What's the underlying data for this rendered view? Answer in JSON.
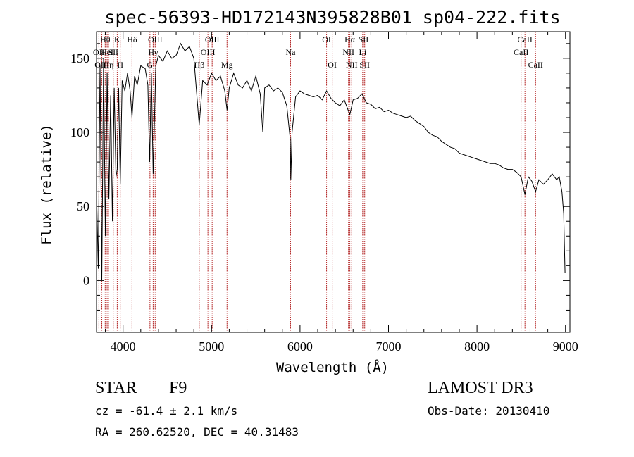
{
  "chart_data": {
    "type": "line",
    "title": "spec-56393-HD172143N395828B01_sp04-222.fits",
    "xlabel": "Wavelength (Å)",
    "ylabel": "Flux (relative)",
    "xlim": [
      3700,
      9050
    ],
    "ylim": [
      -35,
      168
    ],
    "x_ticks": [
      4000,
      5000,
      6000,
      7000,
      8000,
      9000
    ],
    "y_ticks": [
      0,
      50,
      100,
      150
    ],
    "series": [
      {
        "name": "spectrum",
        "points": [
          [
            3700,
            60
          ],
          [
            3720,
            8
          ],
          [
            3740,
            145
          ],
          [
            3760,
            0
          ],
          [
            3780,
            150
          ],
          [
            3800,
            30
          ],
          [
            3820,
            140
          ],
          [
            3840,
            55
          ],
          [
            3860,
            125
          ],
          [
            3880,
            40
          ],
          [
            3900,
            130
          ],
          [
            3920,
            70
          ],
          [
            3934,
            75
          ],
          [
            3950,
            130
          ],
          [
            3968,
            65
          ],
          [
            3990,
            135
          ],
          [
            4020,
            128
          ],
          [
            4050,
            140
          ],
          [
            4080,
            128
          ],
          [
            4101,
            110
          ],
          [
            4130,
            138
          ],
          [
            4160,
            132
          ],
          [
            4200,
            145
          ],
          [
            4250,
            143
          ],
          [
            4280,
            132
          ],
          [
            4300,
            80
          ],
          [
            4320,
            140
          ],
          [
            4340,
            72
          ],
          [
            4370,
            145
          ],
          [
            4400,
            152
          ],
          [
            4450,
            148
          ],
          [
            4500,
            155
          ],
          [
            4550,
            150
          ],
          [
            4600,
            152
          ],
          [
            4650,
            160
          ],
          [
            4700,
            155
          ],
          [
            4750,
            158
          ],
          [
            4800,
            150
          ],
          [
            4861,
            105
          ],
          [
            4900,
            135
          ],
          [
            4950,
            132
          ],
          [
            5000,
            140
          ],
          [
            5050,
            135
          ],
          [
            5100,
            138
          ],
          [
            5150,
            128
          ],
          [
            5175,
            115
          ],
          [
            5200,
            130
          ],
          [
            5250,
            140
          ],
          [
            5300,
            132
          ],
          [
            5350,
            130
          ],
          [
            5400,
            135
          ],
          [
            5450,
            128
          ],
          [
            5500,
            138
          ],
          [
            5550,
            126
          ],
          [
            5580,
            100
          ],
          [
            5600,
            130
          ],
          [
            5650,
            132
          ],
          [
            5700,
            128
          ],
          [
            5750,
            130
          ],
          [
            5800,
            127
          ],
          [
            5850,
            118
          ],
          [
            5890,
            95
          ],
          [
            5896,
            68
          ],
          [
            5910,
            100
          ],
          [
            5950,
            124
          ],
          [
            6000,
            128
          ],
          [
            6050,
            126
          ],
          [
            6100,
            125
          ],
          [
            6150,
            124
          ],
          [
            6200,
            125
          ],
          [
            6250,
            122
          ],
          [
            6300,
            128
          ],
          [
            6350,
            123
          ],
          [
            6400,
            120
          ],
          [
            6450,
            118
          ],
          [
            6500,
            122
          ],
          [
            6563,
            112
          ],
          [
            6600,
            122
          ],
          [
            6650,
            123
          ],
          [
            6700,
            126
          ],
          [
            6750,
            120
          ],
          [
            6800,
            119
          ],
          [
            6850,
            116
          ],
          [
            6900,
            117
          ],
          [
            6950,
            114
          ],
          [
            7000,
            115
          ],
          [
            7050,
            113
          ],
          [
            7100,
            112
          ],
          [
            7150,
            111
          ],
          [
            7200,
            110
          ],
          [
            7250,
            111
          ],
          [
            7300,
            108
          ],
          [
            7350,
            106
          ],
          [
            7400,
            104
          ],
          [
            7450,
            100
          ],
          [
            7500,
            98
          ],
          [
            7550,
            97
          ],
          [
            7600,
            94
          ],
          [
            7650,
            92
          ],
          [
            7700,
            90
          ],
          [
            7750,
            89
          ],
          [
            7800,
            86
          ],
          [
            7850,
            85
          ],
          [
            7900,
            84
          ],
          [
            7950,
            83
          ],
          [
            8000,
            82
          ],
          [
            8050,
            81
          ],
          [
            8100,
            80
          ],
          [
            8150,
            79
          ],
          [
            8200,
            79
          ],
          [
            8250,
            78
          ],
          [
            8300,
            76
          ],
          [
            8350,
            75
          ],
          [
            8400,
            75
          ],
          [
            8450,
            73
          ],
          [
            8498,
            70
          ],
          [
            8542,
            58
          ],
          [
            8580,
            70
          ],
          [
            8620,
            67
          ],
          [
            8662,
            60
          ],
          [
            8700,
            68
          ],
          [
            8750,
            65
          ],
          [
            8800,
            68
          ],
          [
            8850,
            72
          ],
          [
            8900,
            68
          ],
          [
            8930,
            70
          ],
          [
            8960,
            60
          ],
          [
            8980,
            45
          ],
          [
            8995,
            5
          ]
        ]
      }
    ],
    "spectral_lines": [
      {
        "label": "Hθ",
        "wavelength": 3798,
        "row": 0
      },
      {
        "label": "OII",
        "wavelength": 3727,
        "row": 1
      },
      {
        "label": "HeI",
        "wavelength": 3820,
        "row": 1
      },
      {
        "label": "OIII",
        "wavelength": 3760,
        "row": 2
      },
      {
        "label": "Hη",
        "wavelength": 3835,
        "row": 2
      },
      {
        "label": "K",
        "wavelength": 3934,
        "row": 0
      },
      {
        "label": "SII",
        "wavelength": 3889,
        "row": 1
      },
      {
        "label": "H",
        "wavelength": 3968,
        "row": 2
      },
      {
        "label": "Hδ",
        "wavelength": 4101,
        "row": 0
      },
      {
        "label": "OIII",
        "wavelength": 4363,
        "row": 0
      },
      {
        "label": "Hγ",
        "wavelength": 4340,
        "row": 1
      },
      {
        "label": "G",
        "wavelength": 4304,
        "row": 2
      },
      {
        "label": "OIII",
        "wavelength": 5007,
        "row": 0
      },
      {
        "label": "OIII",
        "wavelength": 4959,
        "row": 1
      },
      {
        "label": "Hβ",
        "wavelength": 4861,
        "row": 2
      },
      {
        "label": "Mg",
        "wavelength": 5175,
        "row": 2
      },
      {
        "label": "Na",
        "wavelength": 5893,
        "row": 1
      },
      {
        "label": "OI",
        "wavelength": 6300,
        "row": 0
      },
      {
        "label": "OI",
        "wavelength": 6364,
        "row": 2
      },
      {
        "label": "Hα",
        "wavelength": 6563,
        "row": 0
      },
      {
        "label": "NII",
        "wavelength": 6548,
        "row": 1
      },
      {
        "label": "NII",
        "wavelength": 6584,
        "row": 2
      },
      {
        "label": "SII",
        "wavelength": 6717,
        "row": 0
      },
      {
        "label": "Li",
        "wavelength": 6708,
        "row": 1
      },
      {
        "label": "SII",
        "wavelength": 6731,
        "row": 2
      },
      {
        "label": "CaII",
        "wavelength": 8542,
        "row": 0
      },
      {
        "label": "CaII",
        "wavelength": 8498,
        "row": 1
      },
      {
        "label": "CaII",
        "wavelength": 8662,
        "row": 2
      }
    ]
  },
  "info": {
    "object_class": "STAR",
    "subclass": "F9",
    "survey": "LAMOST DR3",
    "redshift": "cz = -61.4 ± 2.1 km/s",
    "obs_date": "Obs-Date: 20130410",
    "coordinates": "RA = 260.62520, DEC =  40.31483"
  }
}
